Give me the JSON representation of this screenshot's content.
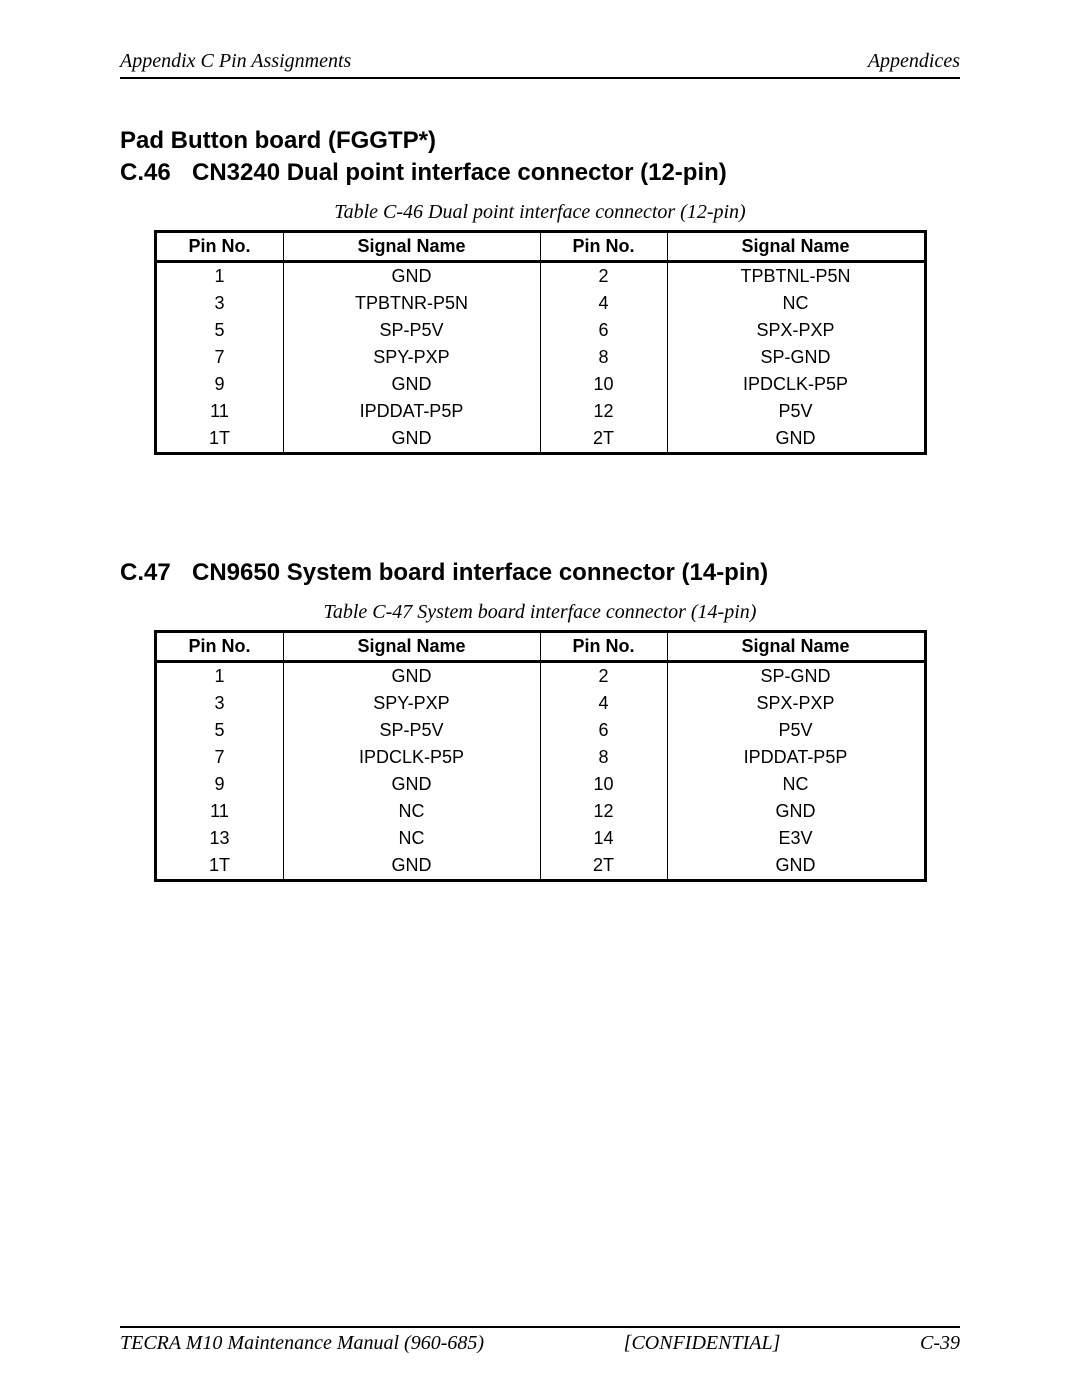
{
  "header": {
    "left": "Appendix C  Pin Assignments",
    "right": "Appendices"
  },
  "section1": {
    "supertitle": "Pad Button board (FGGTP*)",
    "number": "C.46",
    "title": "CN3240  Dual point interface connector (12-pin)",
    "caption": "Table C-46  Dual point interface connector (12-pin)",
    "columns": [
      "Pin No.",
      "Signal Name",
      "Pin No.",
      "Signal Name"
    ],
    "rows": [
      [
        "1",
        "GND",
        "2",
        "TPBTNL-P5N"
      ],
      [
        "3",
        "TPBTNR-P5N",
        "4",
        "NC"
      ],
      [
        "5",
        "SP-P5V",
        "6",
        "SPX-PXP"
      ],
      [
        "7",
        "SPY-PXP",
        "8",
        "SP-GND"
      ],
      [
        "9",
        "GND",
        "10",
        "IPDCLK-P5P"
      ],
      [
        "11",
        "IPDDAT-P5P",
        "12",
        "P5V"
      ],
      [
        "1T",
        "GND",
        "2T",
        "GND"
      ]
    ]
  },
  "section2": {
    "number": "C.47",
    "title": "CN9650  System board interface connector (14-pin)",
    "caption": "Table C-47  System board interface connector (14-pin)",
    "columns": [
      "Pin No.",
      "Signal Name",
      "Pin No.",
      "Signal Name"
    ],
    "rows": [
      [
        "1",
        "GND",
        "2",
        "SP-GND"
      ],
      [
        "3",
        "SPY-PXP",
        "4",
        "SPX-PXP"
      ],
      [
        "5",
        "SP-P5V",
        "6",
        "P5V"
      ],
      [
        "7",
        "IPDCLK-P5P",
        "8",
        "IPDDAT-P5P"
      ],
      [
        "9",
        "GND",
        "10",
        "NC"
      ],
      [
        "11",
        "NC",
        "12",
        "GND"
      ],
      [
        "13",
        "NC",
        "14",
        "E3V"
      ],
      [
        "1T",
        "GND",
        "2T",
        "GND"
      ]
    ]
  },
  "footer": {
    "left": "TECRA M10 Maintenance Manual (960-685)",
    "center": "[CONFIDENTIAL]",
    "right": "C-39"
  }
}
